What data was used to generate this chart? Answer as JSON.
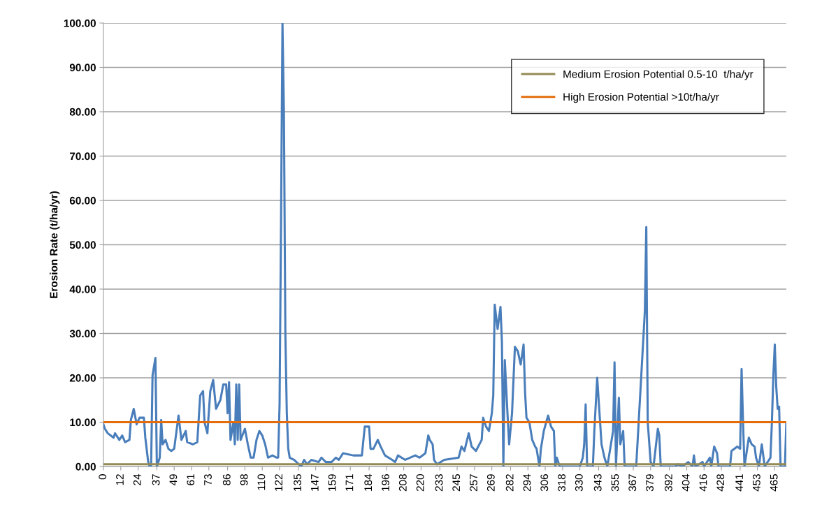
{
  "chart_data": {
    "type": "line",
    "ylabel": "Erosion Rate (t/ha/yr)",
    "series": [
      {
        "color": "#4a7ebb",
        "x": [
          0,
          1,
          3,
          7,
          8,
          11,
          13,
          15,
          18,
          19,
          21,
          23,
          25,
          28,
          29,
          31,
          32,
          33,
          34,
          36,
          37,
          39,
          40,
          41,
          43,
          45,
          47,
          49,
          52,
          54,
          57,
          58,
          62,
          65,
          67,
          69,
          70,
          72,
          74,
          76,
          78,
          81,
          83,
          85,
          86,
          87,
          88,
          90,
          91,
          92,
          93,
          94,
          95,
          98,
          100,
          102,
          104,
          106,
          108,
          110,
          112,
          114,
          117,
          120,
          121,
          122,
          123,
          124,
          125,
          126,
          127,
          128,
          129,
          132,
          137,
          139,
          141,
          144,
          149,
          151,
          154,
          158,
          161,
          163,
          166,
          173,
          179,
          181,
          184,
          185,
          187,
          190,
          192,
          195,
          200,
          202,
          204,
          209,
          216,
          219,
          223,
          225,
          226,
          228,
          229,
          231,
          236,
          246,
          248,
          250,
          253,
          255,
          258,
          262,
          263,
          265,
          267,
          269,
          270,
          271,
          273,
          275,
          276,
          277,
          278,
          280,
          281,
          283,
          285,
          287,
          289,
          291,
          292,
          293,
          295,
          297,
          299,
          300,
          302,
          303,
          305,
          308,
          310,
          312,
          313,
          314,
          316,
          330,
          332,
          333,
          334,
          335,
          339,
          340,
          342,
          343,
          345,
          347,
          349,
          351,
          353,
          354,
          355,
          357,
          358,
          360,
          361,
          369,
          375,
          376,
          377,
          379,
          381,
          384,
          385,
          386,
          396,
          398,
          401,
          405,
          408,
          409,
          410,
          415,
          416,
          420,
          421,
          423,
          425,
          426,
          434,
          435,
          439,
          441,
          442,
          443,
          444,
          447,
          449,
          451,
          452,
          454,
          456,
          458,
          462,
          463,
          464,
          465,
          466,
          467,
          468,
          469,
          472,
          473
        ],
        "values": [
          9.5,
          8.5,
          7.5,
          6.5,
          7.5,
          6,
          7,
          5.5,
          6,
          10.5,
          13,
          9.5,
          11,
          11,
          6.5,
          1,
          0,
          0,
          20.5,
          24.5,
          0,
          2,
          10.5,
          5,
          6,
          4,
          3.5,
          4,
          11.5,
          6,
          8,
          5.5,
          5,
          5.5,
          16,
          17,
          10,
          7.5,
          17,
          19.5,
          13,
          15,
          18.5,
          18.5,
          12,
          19,
          6,
          10,
          5,
          18.5,
          6,
          18.5,
          6,
          8.5,
          5,
          2,
          2,
          6,
          8,
          7,
          5,
          2,
          2.5,
          2,
          2,
          14,
          55,
          100,
          80,
          30,
          12,
          4,
          2,
          1.5,
          0,
          1.5,
          0.5,
          1.5,
          1,
          2,
          1,
          1,
          2,
          1.5,
          3,
          2.5,
          2.5,
          9,
          9,
          4,
          4,
          6,
          4.5,
          2.5,
          1.5,
          1,
          2.5,
          1.5,
          2.5,
          2,
          3,
          7,
          6,
          5,
          1.5,
          0.5,
          1.5,
          2,
          4.5,
          3.5,
          7.5,
          4.5,
          3.5,
          6,
          11,
          9,
          8,
          12,
          16,
          36.5,
          31,
          36,
          28,
          0,
          24,
          11,
          5,
          12,
          27,
          26,
          23,
          27.5,
          17,
          11,
          10,
          6,
          4.5,
          4,
          0,
          4,
          8,
          11.5,
          9,
          8,
          0,
          2,
          0,
          0,
          2,
          5,
          14,
          0,
          0,
          8,
          20,
          15,
          5,
          2,
          0,
          4,
          8,
          23.5,
          0,
          15.5,
          5,
          8,
          0,
          0,
          35,
          54,
          10,
          1,
          0,
          8.5,
          7,
          0,
          0,
          0.5,
          0,
          1,
          0,
          2.5,
          0,
          1,
          0,
          2,
          0,
          4.5,
          3,
          0,
          0,
          3.5,
          4.5,
          4,
          22,
          10,
          0,
          6.5,
          5,
          4.5,
          2,
          0,
          5,
          0,
          2,
          10,
          20.5,
          27.5,
          18,
          13,
          13.5,
          0,
          0,
          10
        ]
      }
    ],
    "ref_lines": [
      {
        "axis": "y",
        "value": 0.5,
        "label": "Medium Erosion Potential 0.5-10  t/ha/yr",
        "color": "#948a54"
      },
      {
        "axis": "y",
        "value": 10,
        "label": "High Erosion Potential >10t/ha/yr",
        "color": "#e46c0a"
      }
    ],
    "xlim": [
      0,
      473
    ],
    "xticks": [
      0,
      12,
      24,
      37,
      49,
      61,
      73,
      86,
      98,
      110,
      122,
      135,
      147,
      159,
      171,
      184,
      196,
      208,
      220,
      233,
      245,
      257,
      269,
      282,
      294,
      306,
      318,
      330,
      343,
      355,
      367,
      379,
      392,
      404,
      416,
      428,
      441,
      453,
      465
    ],
    "ylim": [
      0,
      100
    ],
    "yticks": [
      {
        "value": 0,
        "label": "0.00"
      },
      {
        "value": 10,
        "label": "10.00"
      },
      {
        "value": 20,
        "label": "20.00"
      },
      {
        "value": 30,
        "label": "30.00"
      },
      {
        "value": 40,
        "label": "40.00"
      },
      {
        "value": 50,
        "label": "50.00"
      },
      {
        "value": 60,
        "label": "60.00"
      },
      {
        "value": 70,
        "label": "70.00"
      },
      {
        "value": 80,
        "label": "80.00"
      },
      {
        "value": 90,
        "label": "90.00"
      },
      {
        "value": 100,
        "label": "100.00"
      }
    ],
    "grid": "y",
    "legend": "top right",
    "marker": "none",
    "line_style": "solid"
  }
}
